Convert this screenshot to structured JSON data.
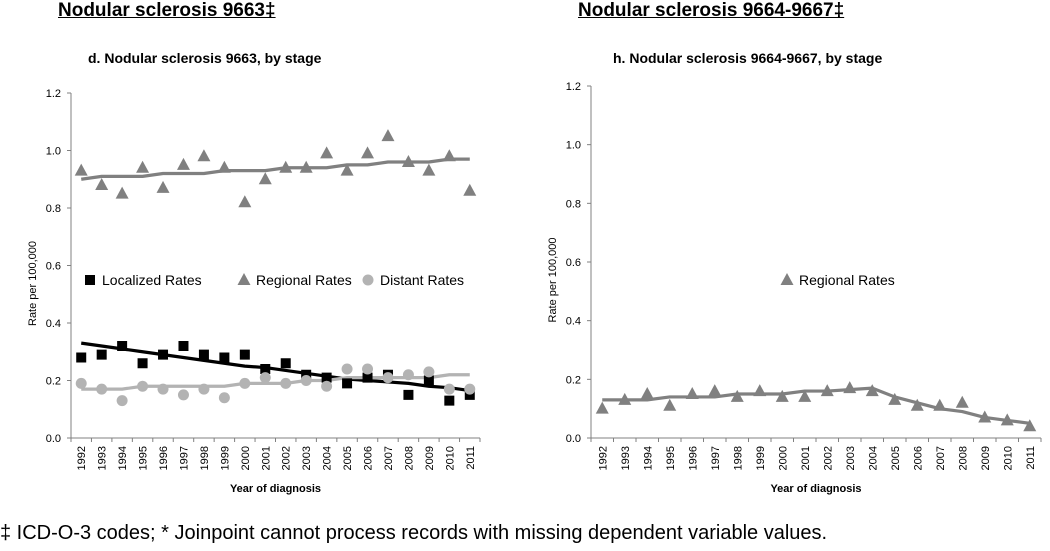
{
  "headings": {
    "left": "Nodular sclerosis 9663‡",
    "right": "Nodular sclerosis 9664-9667‡"
  },
  "footnote": "‡ ICD-O-3 codes; * Joinpoint cannot process records with missing dependent variable values.",
  "colors": {
    "localized": "#000000",
    "regional": "#808080",
    "distant": "#b3b3b3",
    "axis": "#808080"
  },
  "chart_data": [
    {
      "type": "scatter",
      "title": "d. Nodular sclerosis 9663, by stage",
      "xlabel": "Year of diagnosis",
      "ylabel": "Rate per 100,000",
      "ylim": [
        0,
        1.2
      ],
      "yticks": [
        "0.0",
        "0.2",
        "0.4",
        "0.6",
        "0.8",
        "1.0",
        "1.2"
      ],
      "grid": false,
      "legend_placement": "middle",
      "x": [
        "1992",
        "1993",
        "1994",
        "1995",
        "1996",
        "1997",
        "1998",
        "1999",
        "2000",
        "2001",
        "2002",
        "2003",
        "2004",
        "2005",
        "2006",
        "2007",
        "2008",
        "2009",
        "2010",
        "2011"
      ],
      "series": [
        {
          "name": "Localized Rates",
          "marker": "square",
          "color": "#000000",
          "values": [
            0.28,
            0.29,
            0.32,
            0.26,
            0.29,
            0.32,
            0.29,
            0.28,
            0.29,
            0.24,
            0.26,
            0.22,
            0.21,
            0.19,
            0.21,
            0.22,
            0.15,
            0.2,
            0.13,
            0.15
          ],
          "fit": [
            0.33,
            0.32,
            0.31,
            0.3,
            0.29,
            0.28,
            0.27,
            0.26,
            0.25,
            0.245,
            0.235,
            0.225,
            0.215,
            0.205,
            0.2,
            0.195,
            0.19,
            0.18,
            0.175,
            0.165
          ]
        },
        {
          "name": "Regional Rates",
          "marker": "triangle",
          "color": "#808080",
          "values": [
            0.93,
            0.88,
            0.85,
            0.94,
            0.87,
            0.95,
            0.98,
            0.94,
            0.82,
            0.9,
            0.94,
            0.94,
            0.99,
            0.93,
            0.99,
            1.05,
            0.96,
            0.93,
            0.98,
            0.86
          ],
          "fit": [
            0.9,
            0.91,
            0.91,
            0.91,
            0.92,
            0.92,
            0.92,
            0.93,
            0.93,
            0.93,
            0.94,
            0.94,
            0.94,
            0.95,
            0.95,
            0.96,
            0.96,
            0.96,
            0.97,
            0.97
          ]
        },
        {
          "name": "Distant Rates",
          "marker": "circle",
          "color": "#b3b3b3",
          "values": [
            0.19,
            0.17,
            0.13,
            0.18,
            0.17,
            0.15,
            0.17,
            0.14,
            0.19,
            0.21,
            0.19,
            0.2,
            0.18,
            0.24,
            0.24,
            0.21,
            0.22,
            0.23,
            0.17,
            0.17
          ],
          "fit": [
            0.17,
            0.17,
            0.17,
            0.18,
            0.18,
            0.18,
            0.18,
            0.18,
            0.19,
            0.19,
            0.19,
            0.2,
            0.2,
            0.21,
            0.21,
            0.21,
            0.21,
            0.21,
            0.22,
            0.22
          ]
        }
      ]
    },
    {
      "type": "scatter",
      "title": "h. Nodular sclerosis 9664-9667, by stage",
      "xlabel": "Year of diagnosis",
      "ylabel": "Rate per 100,000",
      "ylim": [
        0,
        1.2
      ],
      "yticks": [
        "0.0",
        "0.2",
        "0.4",
        "0.6",
        "0.8",
        "1.0",
        "1.2"
      ],
      "grid": false,
      "legend_placement": "middle",
      "x": [
        "1992",
        "1993",
        "1994",
        "1995",
        "1996",
        "1997",
        "1998",
        "1999",
        "2000",
        "2001",
        "2002",
        "2003",
        "2004",
        "2005",
        "2006",
        "2007",
        "2008",
        "2009",
        "2010",
        "2011"
      ],
      "series": [
        {
          "name": "Regional Rates",
          "marker": "triangle",
          "color": "#808080",
          "values": [
            0.1,
            0.13,
            0.15,
            0.11,
            0.15,
            0.16,
            0.14,
            0.16,
            0.14,
            0.14,
            0.16,
            0.17,
            0.16,
            0.13,
            0.11,
            0.11,
            0.12,
            0.07,
            0.06,
            0.04
          ],
          "fit": [
            0.13,
            0.13,
            0.13,
            0.14,
            0.14,
            0.14,
            0.15,
            0.15,
            0.15,
            0.16,
            0.16,
            0.165,
            0.17,
            0.14,
            0.12,
            0.1,
            0.09,
            0.07,
            0.06,
            0.05
          ]
        }
      ]
    }
  ]
}
